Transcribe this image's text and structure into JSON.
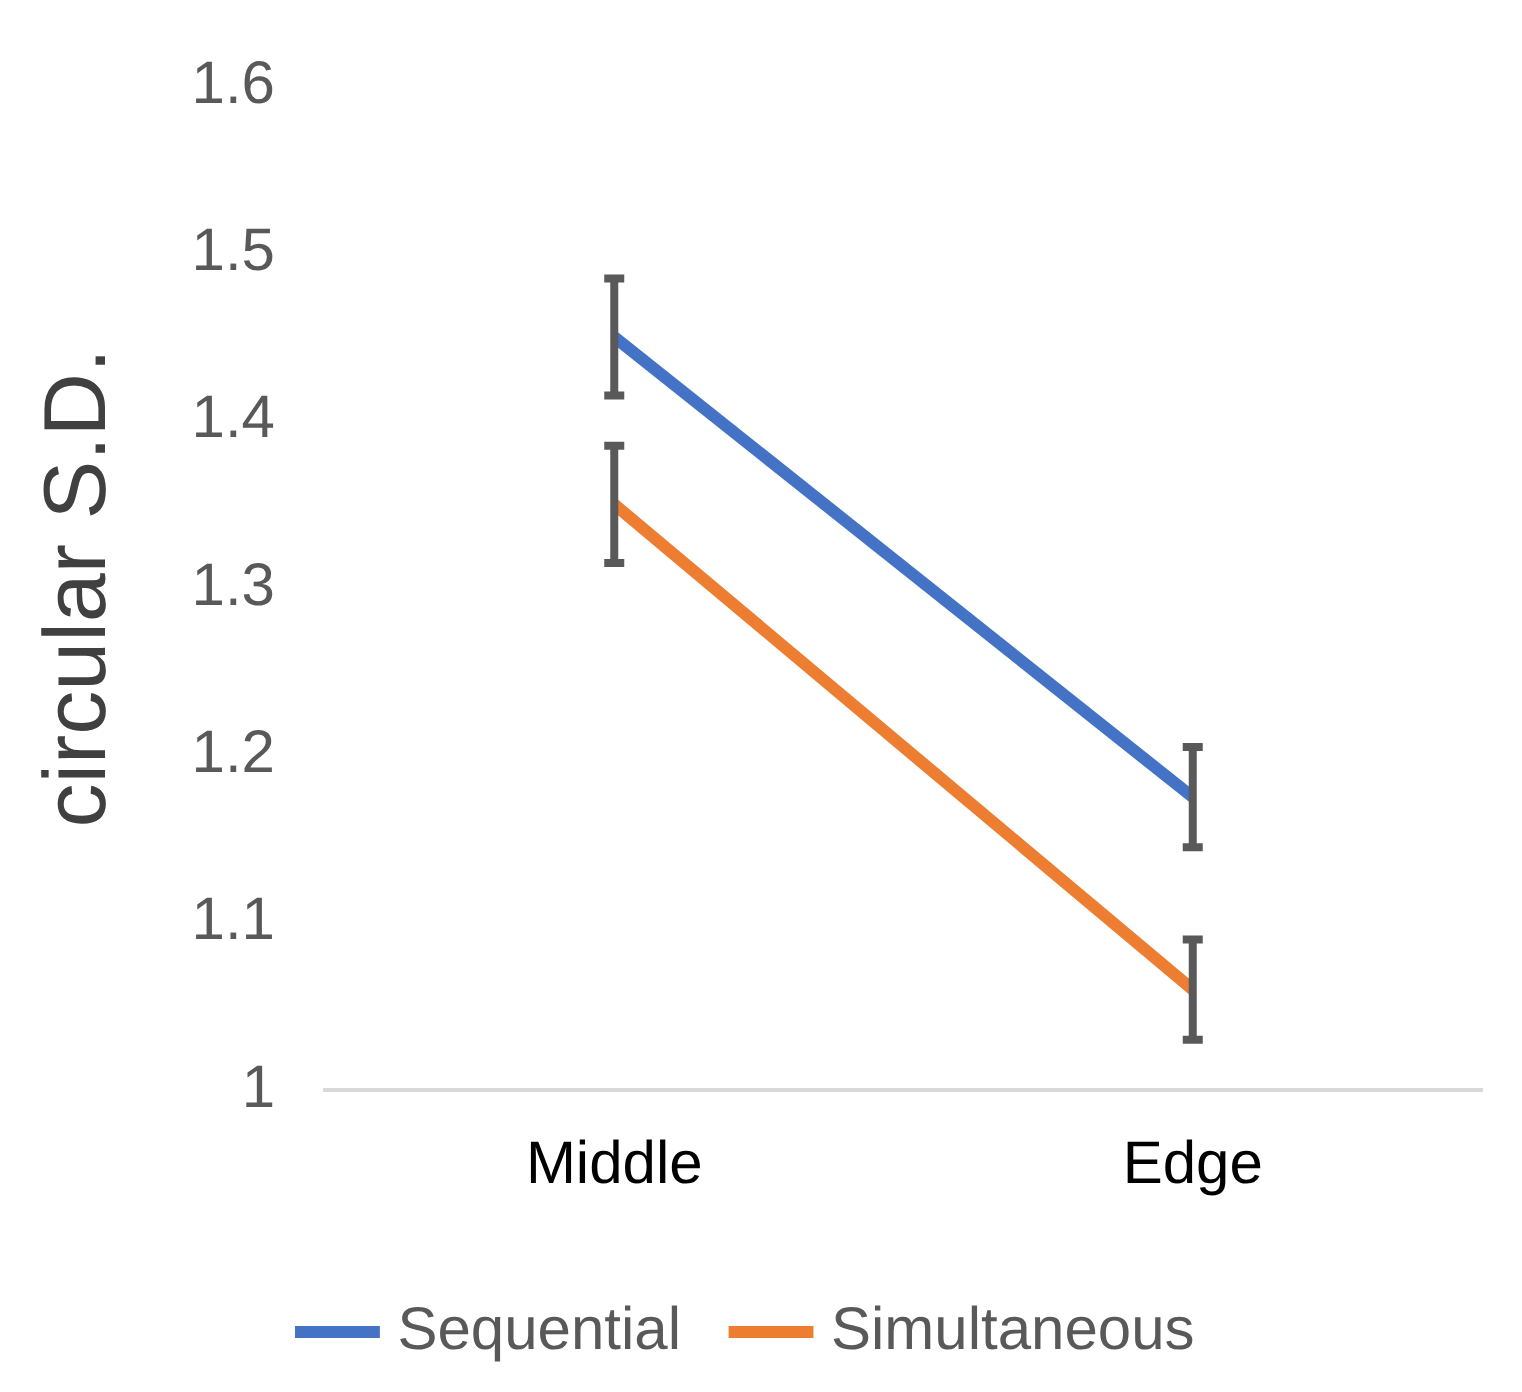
{
  "chart_data": {
    "type": "line",
    "ylabel": "circular S.D.",
    "categories": [
      "Middle",
      "Edge"
    ],
    "series": [
      {
        "name": "Sequential",
        "color": "#4472c4",
        "values": [
          1.45,
          1.175
        ],
        "errors": [
          0.035,
          0.03
        ]
      },
      {
        "name": "Simultaneous",
        "color": "#ed7d31",
        "values": [
          1.35,
          1.06
        ],
        "errors": [
          0.035,
          0.03
        ]
      }
    ],
    "ylim": [
      1,
      1.6
    ],
    "yticks": [
      1,
      1.1,
      1.2,
      1.3,
      1.4,
      1.5,
      1.6
    ],
    "grid": false,
    "legend": "bottom",
    "marker": "none",
    "line_style": "solid"
  }
}
